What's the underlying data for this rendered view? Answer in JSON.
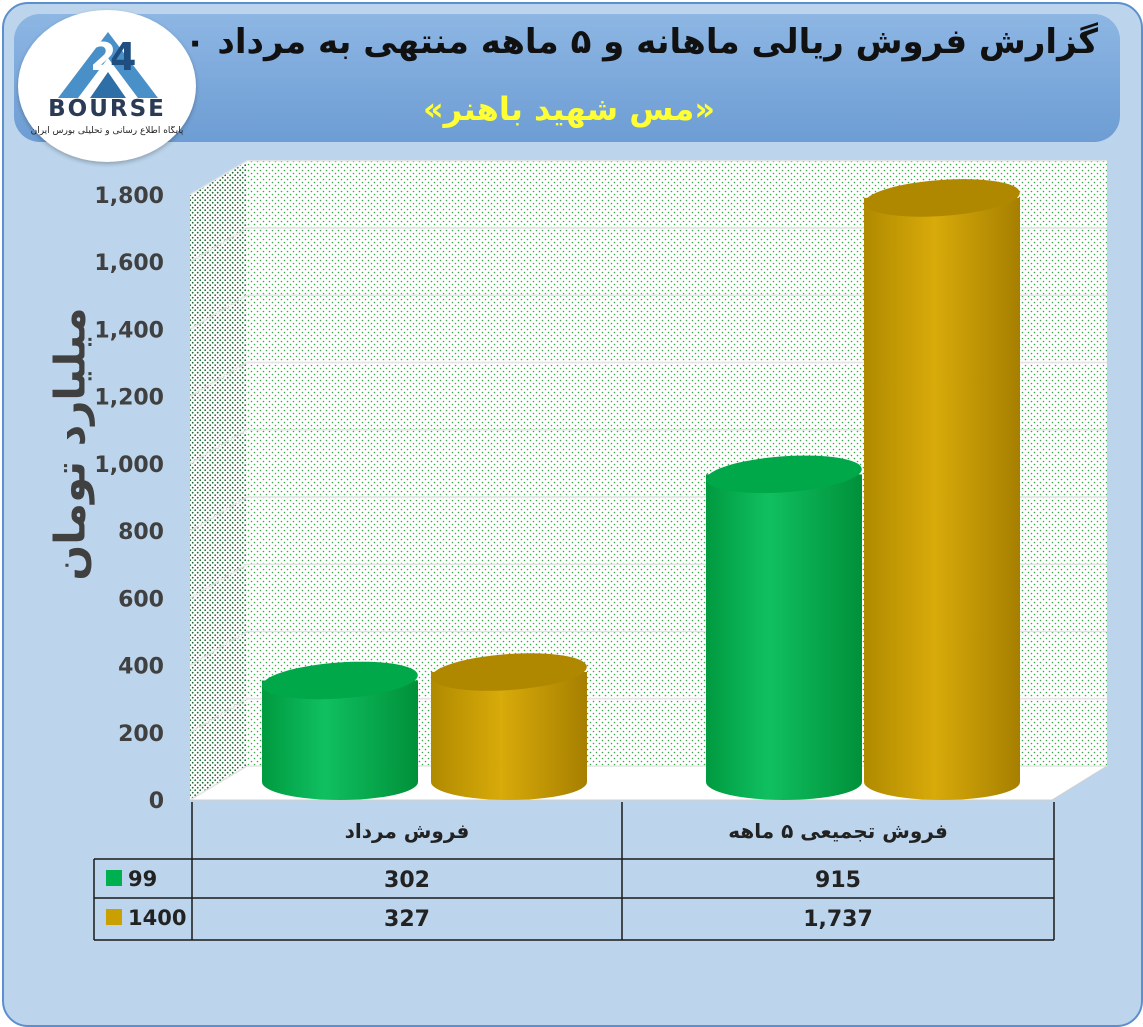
{
  "header": {
    "title": "گزارش فروش ریالی ماهانه و ۵ ماهه منتهی به مرداد ۱۴۰۰",
    "subtitle": "«مس شهید باهنر»"
  },
  "logo": {
    "name": "BOURSE",
    "tagline": "پایگاه اطلاع رسانی و تحلیلی بورس ایران"
  },
  "chart_data": {
    "type": "bar",
    "ylabel": "میلیارد تومان",
    "ylim": [
      0,
      1800
    ],
    "yticks": [
      "0",
      "200",
      "400",
      "600",
      "800",
      "1,000",
      "1,200",
      "1,400",
      "1,600",
      "1,800"
    ],
    "categories": [
      "فروش مرداد",
      "فروش تجمیعی ۵  ماهه"
    ],
    "series": [
      {
        "name": "99",
        "values": [
          302,
          915
        ],
        "labels": [
          "302",
          "915"
        ],
        "color": "#00b050"
      },
      {
        "name": "1400",
        "values": [
          327,
          1737
        ],
        "labels": [
          "327",
          "1,737"
        ],
        "color": "#c9a000"
      }
    ],
    "grid": true,
    "legend": "data-table"
  },
  "colors": {
    "background": "#bcd5ec",
    "header": "#7aa9dc",
    "title": "#111111",
    "subtitle": "#ffff33",
    "green_bar": "#00b050",
    "gold_bar": "#c9a000"
  }
}
